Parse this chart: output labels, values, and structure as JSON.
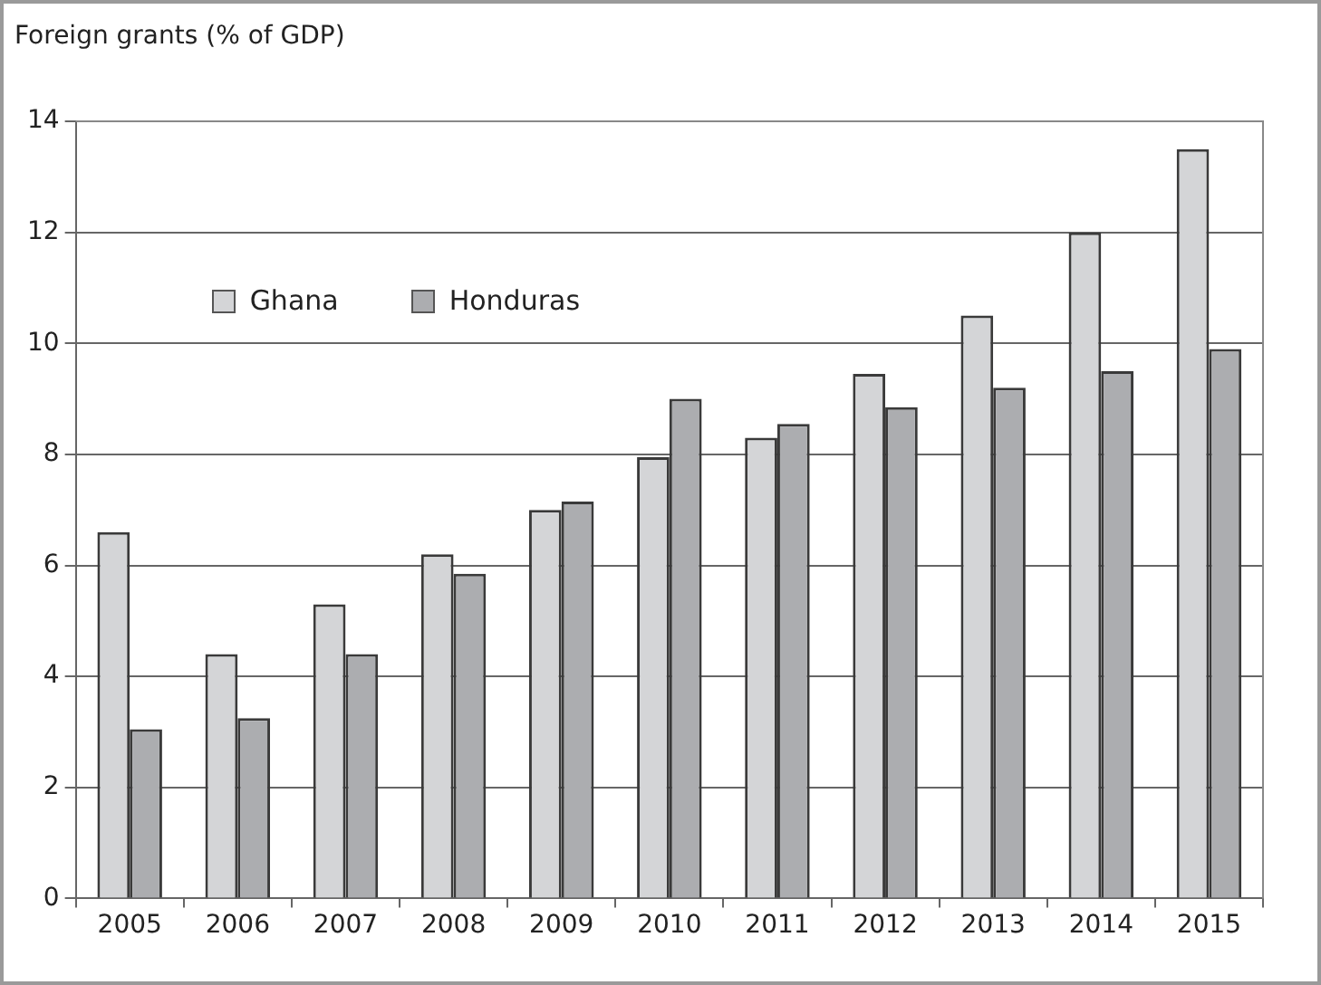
{
  "chart_data": {
    "type": "bar",
    "ylabel": "Foreign grants (% of GDP)",
    "categories": [
      "2005",
      "2006",
      "2007",
      "2008",
      "2009",
      "2010",
      "2011",
      "2012",
      "2013",
      "2014",
      "2015"
    ],
    "series": [
      {
        "name": "Ghana",
        "color": "#d4d5d7",
        "values": [
          6.6,
          4.4,
          5.3,
          6.2,
          7.0,
          7.95,
          8.3,
          9.45,
          10.5,
          12.0,
          13.5
        ]
      },
      {
        "name": "Honduras",
        "color": "#acadb0",
        "values": [
          3.05,
          3.25,
          4.4,
          5.85,
          7.15,
          9.0,
          8.55,
          8.85,
          9.2,
          9.5,
          9.9
        ]
      }
    ],
    "ylim": [
      0,
      14
    ],
    "yticks": [
      0,
      2,
      4,
      6,
      8,
      10,
      12,
      14
    ],
    "grid": "y",
    "legend": "top left"
  }
}
